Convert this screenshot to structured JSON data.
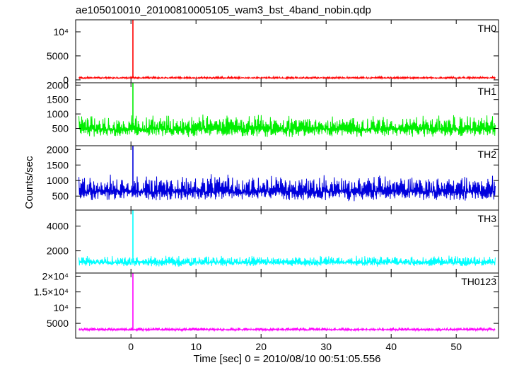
{
  "chart_data": {
    "type": "line",
    "title": "ae105010010_20100810005105_wam3_bst_4band_nobin.qdp",
    "xlabel": "Time [sec] 0 = 2010/08/10 00:51:05.556",
    "ylabel": "Counts/sec",
    "xlim": [
      -8.5,
      56.5
    ],
    "x_ticks": [
      0,
      10,
      20,
      30,
      40,
      50
    ],
    "x_tick_labels": [
      "0",
      "10",
      "20",
      "30",
      "40",
      "50"
    ],
    "data_x_range": [
      -8,
      56
    ],
    "panels": [
      {
        "name": "TH0",
        "color": "#ff0000",
        "ylim": [
          -600,
          12500
        ],
        "ticks": [
          0,
          5000,
          10000
        ],
        "tick_labels": [
          "0",
          "5000",
          "10⁴"
        ],
        "baseline": 400,
        "noise_amp": 320,
        "spike": {
          "x": 0.3,
          "peak": 12500
        }
      },
      {
        "name": "TH1",
        "color": "#00ee00",
        "ylim": [
          -100,
          2080
        ],
        "ticks": [
          500,
          1000,
          1500,
          2000
        ],
        "tick_labels": [
          "500",
          "1000",
          "1500",
          "2000"
        ],
        "baseline": 470,
        "noise_amp": 530,
        "spike": {
          "x": 0.3,
          "peak": 2080
        }
      },
      {
        "name": "TH2",
        "color": "#0000dd",
        "ylim": [
          50,
          2120
        ],
        "ticks": [
          500,
          1000,
          1500,
          2000
        ],
        "tick_labels": [
          "500",
          "1000",
          "1500",
          "2000"
        ],
        "baseline": 640,
        "noise_amp": 580,
        "spike": {
          "x": 0.3,
          "peak": 2120
        }
      },
      {
        "name": "TH3",
        "color": "#00ffff",
        "ylim": [
          200,
          5300
        ],
        "ticks": [
          2000,
          4000
        ],
        "tick_labels": [
          "2000",
          "4000"
        ],
        "baseline": 1050,
        "noise_amp": 620,
        "spike": {
          "x": 0.3,
          "peak": 5300
        }
      },
      {
        "name": "TH0123",
        "color": "#ff00ff",
        "ylim": [
          300,
          21000
        ],
        "ticks": [
          5000,
          10000,
          15000,
          20000
        ],
        "tick_labels": [
          "5000",
          "10⁴",
          "1.5×10⁴",
          "2×10⁴"
        ],
        "baseline": 3000,
        "noise_amp": 700,
        "spike": {
          "x": 0.3,
          "peak": 21000
        }
      }
    ]
  }
}
